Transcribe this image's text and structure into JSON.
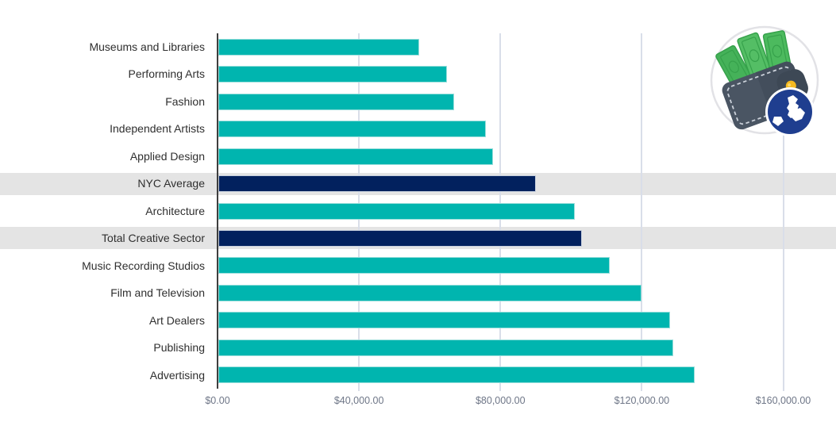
{
  "chart_data": {
    "type": "bar",
    "orientation": "horizontal",
    "title": "",
    "categories": [
      "Museums and Libraries",
      "Performing Arts",
      "Fashion",
      "Independent Artists",
      "Applied Design",
      "NYC Average",
      "Architecture",
      "Total Creative Sector",
      "Music Recording Studios",
      "Film and Television",
      "Art Dealers",
      "Publishing",
      "Advertising"
    ],
    "values": [
      57000,
      65000,
      67000,
      76000,
      78000,
      90000,
      101000,
      103000,
      111000,
      120000,
      128000,
      129000,
      135000
    ],
    "highlighted_indices": [
      5,
      7
    ],
    "x_tick_labels": [
      "$0.00",
      "$40,000.00",
      "$80,000.00",
      "$120,000.00",
      "$160,000.00"
    ],
    "x_tick_values": [
      0,
      40000,
      80000,
      120000,
      160000
    ],
    "xlim": [
      0,
      160000
    ],
    "grid": true,
    "legend": false,
    "colors": {
      "bar": "#00B5AF",
      "bar_border": "#9ADEDB",
      "highlight_bar": "#02215E",
      "highlight_bar_border": "#C7D0DE",
      "highlight_row_bg": "#E4E4E4",
      "gridline": "#D9DEE9",
      "axis_line": "#3E3E3E",
      "tick_label": "#6E7687",
      "category_label": "#2F2F2F",
      "background": "#FFFFFF"
    }
  },
  "icon": {
    "name": "wallet-with-cash-and-nyc-map-badge",
    "parts": [
      "money-bills",
      "wallet",
      "wallet-stitching",
      "gold-clasp",
      "nyc-boroughs-map-badge"
    ],
    "colors": {
      "circle_border": "#E2E2E6",
      "wallet": "#4A5563",
      "wallet_dark": "#434E5C",
      "wallet_flap": "#3D4855",
      "stitching": "#CBD1DA",
      "bill": "#4CBA5E",
      "bill_detail": "#36A14B",
      "clasp": "#F5B91E",
      "badge": "#1F3E8F",
      "map": "#FFFFFF"
    }
  }
}
